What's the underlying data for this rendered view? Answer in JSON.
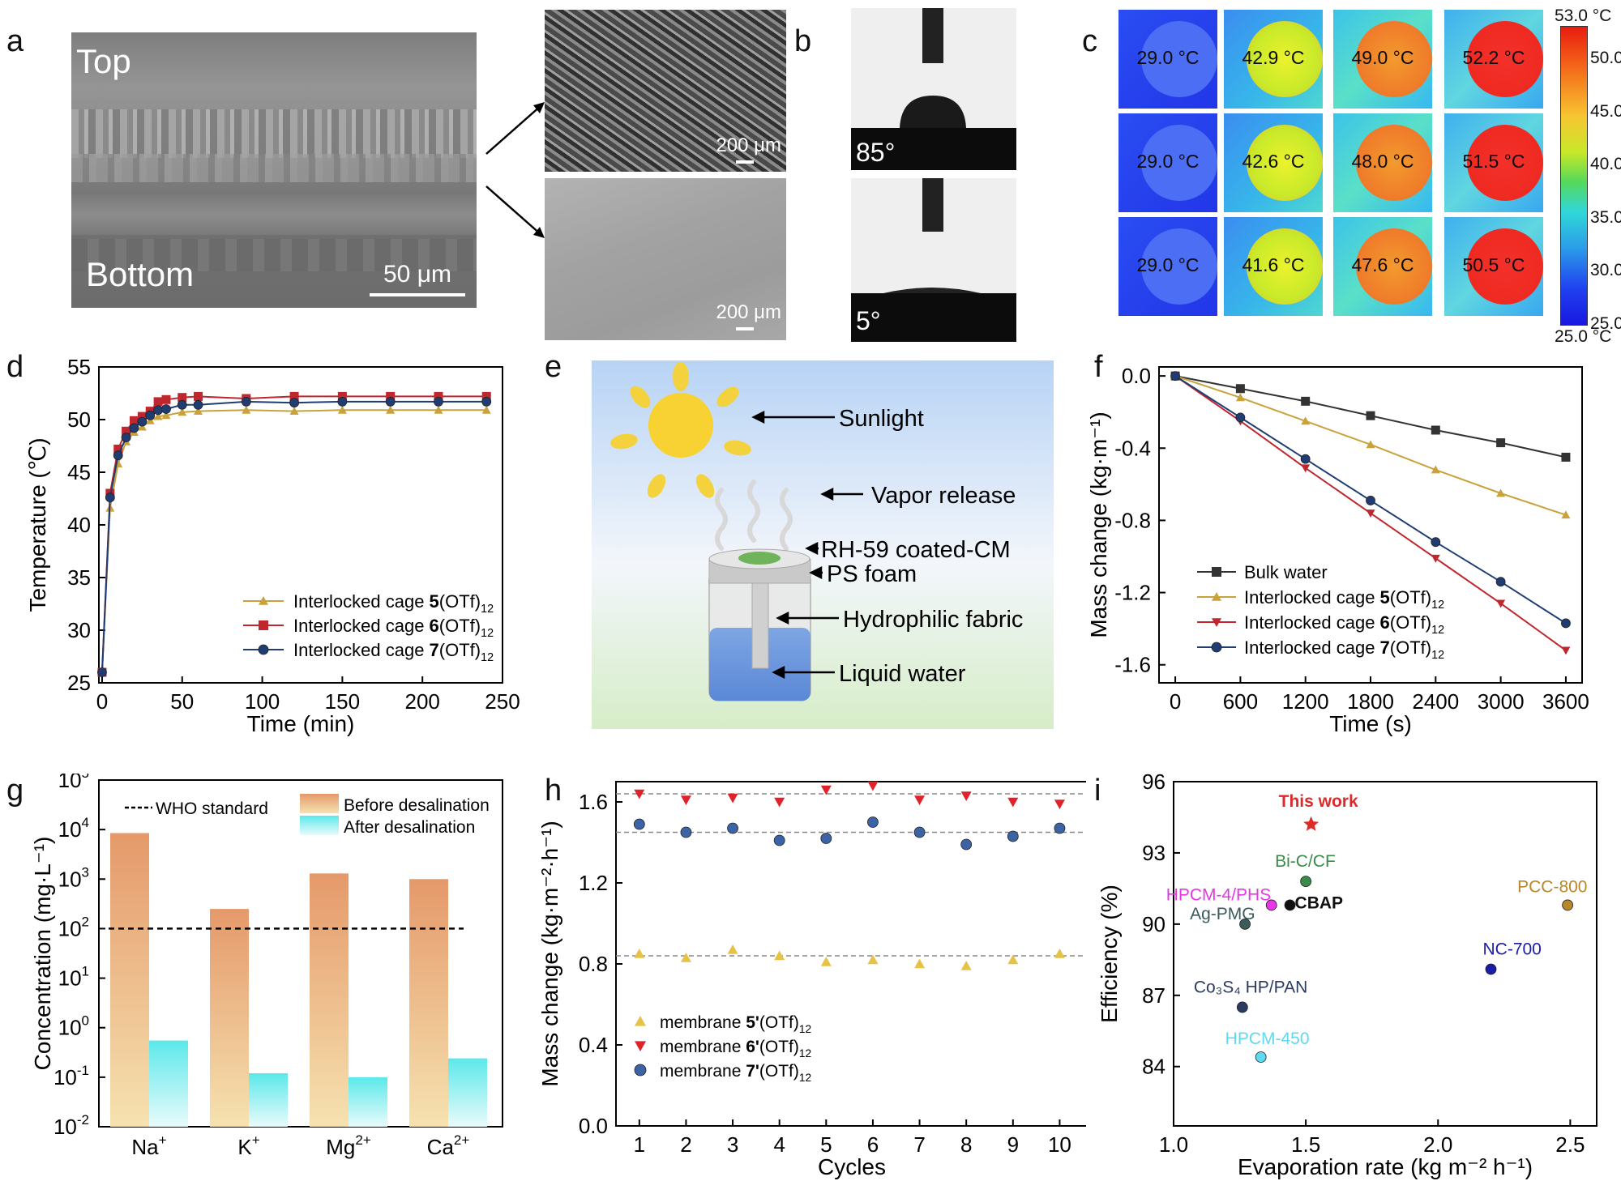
{
  "panel_labels": [
    "a",
    "b",
    "c",
    "d",
    "e",
    "f",
    "g",
    "h",
    "i"
  ],
  "panel_a": {
    "top_label": "Top",
    "bottom_label": "Bottom",
    "scalebar_main": "50 μm",
    "scalebar_small_top": "200 μm",
    "scalebar_small_bottom": "200 μm"
  },
  "panel_b": {
    "angle_top": "85°",
    "angle_bottom": "5°"
  },
  "panel_c": {
    "temps": [
      [
        "29.0 °C",
        "42.9 °C",
        "49.0 °C",
        "52.2 °C"
      ],
      [
        "29.0 °C",
        "42.6 °C",
        "48.0 °C",
        "51.5 °C"
      ],
      [
        "29.0 °C",
        "41.6 °C",
        "47.6 °C",
        "50.5 °C"
      ]
    ],
    "colorbar_max": "53.0 °C",
    "colorbar_min": "25.0 °C",
    "colorbar_ticks": [
      "50.0",
      "45.0",
      "40.0",
      "35.0",
      "30.0",
      "25.0"
    ]
  },
  "panel_e": {
    "labels": [
      "Sunlight",
      "Vapor release",
      "RH-59 coated-CM",
      "PS foam",
      "Hydrophilic fabric",
      "Liquid water"
    ]
  },
  "chart_data": [
    {
      "panel": "d",
      "type": "line",
      "xlabel": "Time (min)",
      "ylabel": "Temperature (℃)",
      "xlim": [
        0,
        250
      ],
      "ylim": [
        25,
        55
      ],
      "xticks": [
        "0",
        "50",
        "100",
        "150",
        "200",
        "250"
      ],
      "yticks": [
        "25",
        "30",
        "35",
        "40",
        "45",
        "50",
        "55"
      ],
      "x": [
        0,
        5,
        10,
        15,
        20,
        25,
        30,
        35,
        40,
        50,
        60,
        90,
        120,
        150,
        180,
        210,
        240
      ],
      "series": [
        {
          "name_prefix": "Interlocked cage ",
          "name_bold": "5",
          "name_suffix": "(OTf)",
          "name_sub": "12",
          "color": "#c9a23c",
          "marker": "triangle",
          "values": [
            26,
            41.6,
            45.8,
            47.9,
            48.8,
            49.3,
            49.9,
            50.3,
            50.4,
            50.7,
            50.8,
            50.9,
            50.8,
            50.9,
            50.9,
            50.9,
            50.9
          ]
        },
        {
          "name_prefix": "Interlocked cage ",
          "name_bold": "6",
          "name_suffix": "(OTf)",
          "name_sub": "12",
          "color": "#c0262d",
          "marker": "square",
          "values": [
            26,
            43,
            47.2,
            48.9,
            49.9,
            50.3,
            50.8,
            51.7,
            51.9,
            52.1,
            52.2,
            52.0,
            52.2,
            52.2,
            52.2,
            52.2,
            52.2
          ]
        },
        {
          "name_prefix": "Interlocked cage ",
          "name_bold": "7",
          "name_suffix": "(OTf)",
          "name_sub": "12",
          "color": "#1f3d73",
          "marker": "circle",
          "values": [
            26,
            42.6,
            46.6,
            48.3,
            49.2,
            49.8,
            50.4,
            50.9,
            51.0,
            51.4,
            51.4,
            51.7,
            51.6,
            51.7,
            51.7,
            51.7,
            51.7
          ]
        }
      ]
    },
    {
      "panel": "f",
      "type": "line",
      "xlabel": "Time (s)",
      "ylabel": "Mass change (kg·m⁻¹)",
      "xlim": [
        -150,
        3750
      ],
      "ylim": [
        -1.7,
        0.05
      ],
      "xticks": [
        "0",
        "600",
        "1200",
        "1800",
        "2400",
        "3000",
        "3600"
      ],
      "yticks": [
        "0.0",
        "-0.4",
        "-0.8",
        "-1.2",
        "-1.6"
      ],
      "x": [
        0,
        600,
        1200,
        1800,
        2400,
        3000,
        3600
      ],
      "series": [
        {
          "name": "Bulk water",
          "color": "#333333",
          "marker": "square",
          "values": [
            0,
            -0.07,
            -0.14,
            -0.22,
            -0.3,
            -0.37,
            -0.45
          ]
        },
        {
          "name_prefix": "Interlocked cage ",
          "name_bold": "5",
          "name_suffix": "(OTf)",
          "name_sub": "12",
          "color": "#c9a23c",
          "marker": "triangle",
          "values": [
            0,
            -0.12,
            -0.25,
            -0.38,
            -0.52,
            -0.65,
            -0.77
          ]
        },
        {
          "name_prefix": "Interlocked cage ",
          "name_bold": "6",
          "name_suffix": "(OTf)",
          "name_sub": "12",
          "color": "#c0262d",
          "marker": "triangle-down",
          "values": [
            0,
            -0.25,
            -0.51,
            -0.76,
            -1.01,
            -1.26,
            -1.52
          ]
        },
        {
          "name_prefix": "Interlocked cage ",
          "name_bold": "7",
          "name_suffix": "(OTf)",
          "name_sub": "12",
          "color": "#1f3d73",
          "marker": "circle",
          "values": [
            0,
            -0.23,
            -0.46,
            -0.69,
            -0.92,
            -1.14,
            -1.37
          ]
        }
      ]
    },
    {
      "panel": "g",
      "type": "bar",
      "scale": "log",
      "xlabel": "",
      "ylabel": "Concentration (mg·L⁻¹)",
      "ylim": [
        0.01,
        100000
      ],
      "yticks_base": "10",
      "yticks_exp": [
        "-2",
        "-1",
        "0",
        "1",
        "2",
        "3",
        "4",
        "5"
      ],
      "categories": [
        {
          "base": "Na",
          "sup": "+"
        },
        {
          "base": "K",
          "sup": "+"
        },
        {
          "base": "Mg",
          "sup": "2+"
        },
        {
          "base": "Ca",
          "sup": "2+"
        }
      ],
      "series": [
        {
          "name": "Before desalination",
          "values": [
            8500,
            250,
            1300,
            1000
          ]
        },
        {
          "name": "After desalination",
          "values": [
            0.55,
            0.12,
            0.1,
            0.24
          ]
        }
      ],
      "reference": {
        "name": "WHO standard",
        "value": 100
      }
    },
    {
      "panel": "h",
      "type": "scatter",
      "xlabel": "Cycles",
      "ylabel": "Mass change (kg·m⁻²·h⁻¹)",
      "xlim": [
        0.5,
        10.6
      ],
      "ylim": [
        0,
        1.7
      ],
      "xticks": [
        "1",
        "2",
        "3",
        "4",
        "5",
        "6",
        "7",
        "8",
        "9",
        "10"
      ],
      "yticks": [
        "0.0",
        "0.4",
        "0.8",
        "1.2",
        "1.6"
      ],
      "x": [
        1,
        2,
        3,
        4,
        5,
        6,
        7,
        8,
        9,
        10
      ],
      "reference_lines": [
        1.64,
        1.45,
        0.84
      ],
      "series": [
        {
          "name_prefix": "membrane ",
          "name_bold": "5'",
          "name_suffix": "(OTf)",
          "name_sub": "12",
          "color": "#e6c347",
          "marker": "triangle",
          "values": [
            0.85,
            0.83,
            0.87,
            0.84,
            0.81,
            0.82,
            0.8,
            0.79,
            0.82,
            0.85
          ]
        },
        {
          "name_prefix": "membrane ",
          "name_bold": "6'",
          "name_suffix": "(OTf)",
          "name_sub": "12",
          "color": "#e0222a",
          "marker": "triangle-down",
          "values": [
            1.64,
            1.61,
            1.62,
            1.6,
            1.66,
            1.68,
            1.61,
            1.63,
            1.6,
            1.59
          ]
        },
        {
          "name_prefix": "membrane ",
          "name_bold": "7'",
          "name_suffix": "(OTf)",
          "name_sub": "12",
          "color": "#3b63a6",
          "marker": "circle",
          "values": [
            1.49,
            1.45,
            1.47,
            1.41,
            1.42,
            1.5,
            1.45,
            1.39,
            1.43,
            1.47
          ]
        }
      ]
    },
    {
      "panel": "i",
      "type": "scatter",
      "xlabel": "Evaporation rate (kg m⁻² h⁻¹)",
      "ylabel": "Efficiency (%)",
      "xlim": [
        1.0,
        2.6
      ],
      "ylim": [
        81.5,
        96
      ],
      "xticks": [
        "1.0",
        "1.5",
        "2.0",
        "2.5"
      ],
      "yticks": [
        "84",
        "87",
        "90",
        "93",
        "96"
      ],
      "points": [
        {
          "label": "This work",
          "x": 1.52,
          "y": 94.2,
          "color": "#e02a2a",
          "marker": "star"
        },
        {
          "label": "Bi-C/CF",
          "x": 1.5,
          "y": 91.8,
          "color": "#3a8a4a",
          "marker": "circle"
        },
        {
          "label": "HPCM-4/PHS",
          "x": 1.37,
          "y": 90.8,
          "color": "#e636e6",
          "marker": "circle"
        },
        {
          "label": "CBAP",
          "x": 1.44,
          "y": 90.8,
          "color": "#111111",
          "marker": "circle"
        },
        {
          "label": "Ag-PMG",
          "x": 1.27,
          "y": 90.0,
          "color": "#3b5a5a",
          "marker": "circle"
        },
        {
          "label": "PCC-800",
          "x": 2.49,
          "y": 90.8,
          "color": "#b8862b",
          "marker": "circle"
        },
        {
          "label": "NC-700",
          "x": 2.2,
          "y": 88.1,
          "color": "#1c1ca8",
          "marker": "circle"
        },
        {
          "label": "Co₃S₄ HP/PAN",
          "x": 1.26,
          "y": 86.5,
          "color": "#2a3a60",
          "marker": "circle"
        },
        {
          "label": "HPCM-450",
          "x": 1.33,
          "y": 84.4,
          "color": "#5fd8f0",
          "marker": "circle"
        }
      ]
    }
  ]
}
